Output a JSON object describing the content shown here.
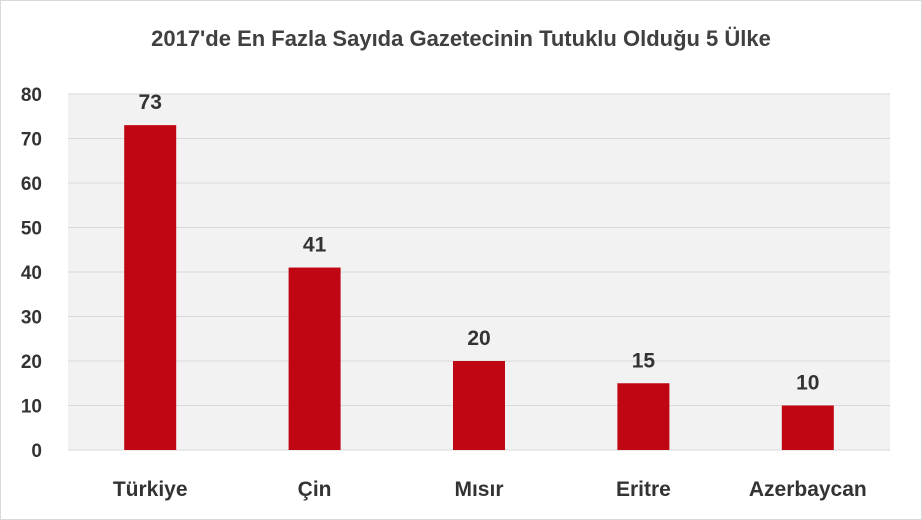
{
  "chart_data": {
    "type": "bar",
    "title": "2017'de  En Fazla Sayıda Gazetecinin Tutuklu Olduğu 5 Ülke",
    "categories": [
      "Türkiye",
      "Çin",
      "Mısır",
      "Eritre",
      "Azerbaycan"
    ],
    "values": [
      73,
      41,
      20,
      15,
      10
    ],
    "xlabel": "",
    "ylabel": "",
    "ylim": [
      0,
      80
    ],
    "yticks": [
      0,
      10,
      20,
      30,
      40,
      50,
      60,
      70,
      80
    ],
    "grid": true,
    "legend": "none",
    "colors": {
      "bar": "#c00612",
      "plot_background": "#f2f2f2",
      "grid": "#d9d9d9",
      "text": "#333333"
    }
  }
}
